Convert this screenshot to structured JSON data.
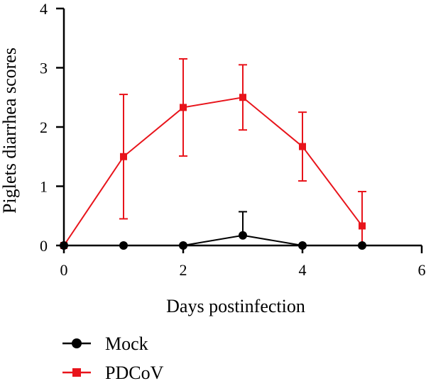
{
  "chart_data": {
    "type": "line",
    "title": "",
    "xlabel": "Days postinfection",
    "ylabel": "Piglets diarrhea scores",
    "xlim": [
      0,
      6
    ],
    "ylim": [
      0,
      4
    ],
    "xticks": [
      0,
      2,
      4,
      6
    ],
    "yticks": [
      0,
      1,
      2,
      3,
      4
    ],
    "grid": false,
    "legend_position": "bottom-left",
    "series": [
      {
        "name": "Mock",
        "color": "#000000",
        "marker": "circle",
        "x": [
          0,
          1,
          2,
          3,
          4,
          5
        ],
        "y": [
          0,
          0,
          0,
          0.17,
          0,
          0
        ],
        "error_upper": [
          0,
          0,
          0,
          0.4,
          0,
          0
        ]
      },
      {
        "name": "PDCoV",
        "color": "#e8141b",
        "marker": "square",
        "x": [
          0,
          1,
          2,
          3,
          4,
          5
        ],
        "y": [
          0,
          1.5,
          2.33,
          2.5,
          1.67,
          0.33
        ],
        "error": [
          0,
          1.05,
          0.82,
          0.55,
          0.58,
          0.58
        ]
      }
    ]
  }
}
